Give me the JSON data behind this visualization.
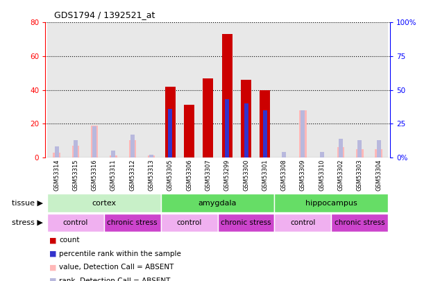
{
  "title": "GDS1794 / 1392521_at",
  "samples": [
    "GSM53314",
    "GSM53315",
    "GSM53316",
    "GSM53311",
    "GSM53312",
    "GSM53313",
    "GSM53305",
    "GSM53306",
    "GSM53307",
    "GSM53299",
    "GSM53300",
    "GSM53301",
    "GSM53308",
    "GSM53309",
    "GSM53310",
    "GSM53302",
    "GSM53303",
    "GSM53304"
  ],
  "count": [
    0,
    0,
    0,
    0,
    0,
    0,
    42,
    31,
    47,
    73,
    46,
    40,
    0,
    0,
    0,
    0,
    0,
    0
  ],
  "percentile_rank": [
    null,
    null,
    null,
    null,
    null,
    null,
    36,
    null,
    null,
    43,
    40,
    35,
    null,
    null,
    null,
    null,
    null,
    null
  ],
  "value_absent": [
    3,
    7,
    19,
    1,
    10,
    1,
    null,
    null,
    null,
    null,
    null,
    null,
    null,
    28,
    null,
    6,
    5,
    5
  ],
  "rank_absent": [
    8,
    13,
    23,
    5,
    17,
    2,
    null,
    null,
    null,
    null,
    null,
    null,
    4,
    35,
    4,
    14,
    13,
    13
  ],
  "ylim_left": [
    0,
    80
  ],
  "ylim_right": [
    0,
    100
  ],
  "yticks_left": [
    0,
    20,
    40,
    60,
    80
  ],
  "yticks_right": [
    0,
    25,
    50,
    75,
    100
  ],
  "tissue_groups": [
    {
      "label": "cortex",
      "start": 0,
      "end": 6
    },
    {
      "label": "amygdala",
      "start": 6,
      "end": 12
    },
    {
      "label": "hippocampus",
      "start": 12,
      "end": 18
    }
  ],
  "stress_groups": [
    {
      "label": "control",
      "start": 0,
      "end": 3
    },
    {
      "label": "chronic stress",
      "start": 3,
      "end": 6
    },
    {
      "label": "control",
      "start": 6,
      "end": 9
    },
    {
      "label": "chronic stress",
      "start": 9,
      "end": 12
    },
    {
      "label": "control",
      "start": 12,
      "end": 15
    },
    {
      "label": "chronic stress",
      "start": 15,
      "end": 18
    }
  ],
  "count_color": "#cc0000",
  "rank_color": "#3333cc",
  "value_absent_color": "#ffb8b8",
  "rank_absent_color": "#b8b8dd",
  "tissue_color_light": "#c8f0c8",
  "tissue_color_dark": "#66dd66",
  "stress_color_control": "#f0b0f0",
  "stress_color_chronic": "#cc44cc",
  "plot_bg": "#ffffff",
  "col_bg": "#e8e8e8",
  "legend_items": [
    {
      "color": "#cc0000",
      "label": "count"
    },
    {
      "color": "#3333cc",
      "label": "percentile rank within the sample"
    },
    {
      "color": "#ffb8b8",
      "label": "value, Detection Call = ABSENT"
    },
    {
      "color": "#b8b8dd",
      "label": "rank, Detection Call = ABSENT"
    }
  ]
}
